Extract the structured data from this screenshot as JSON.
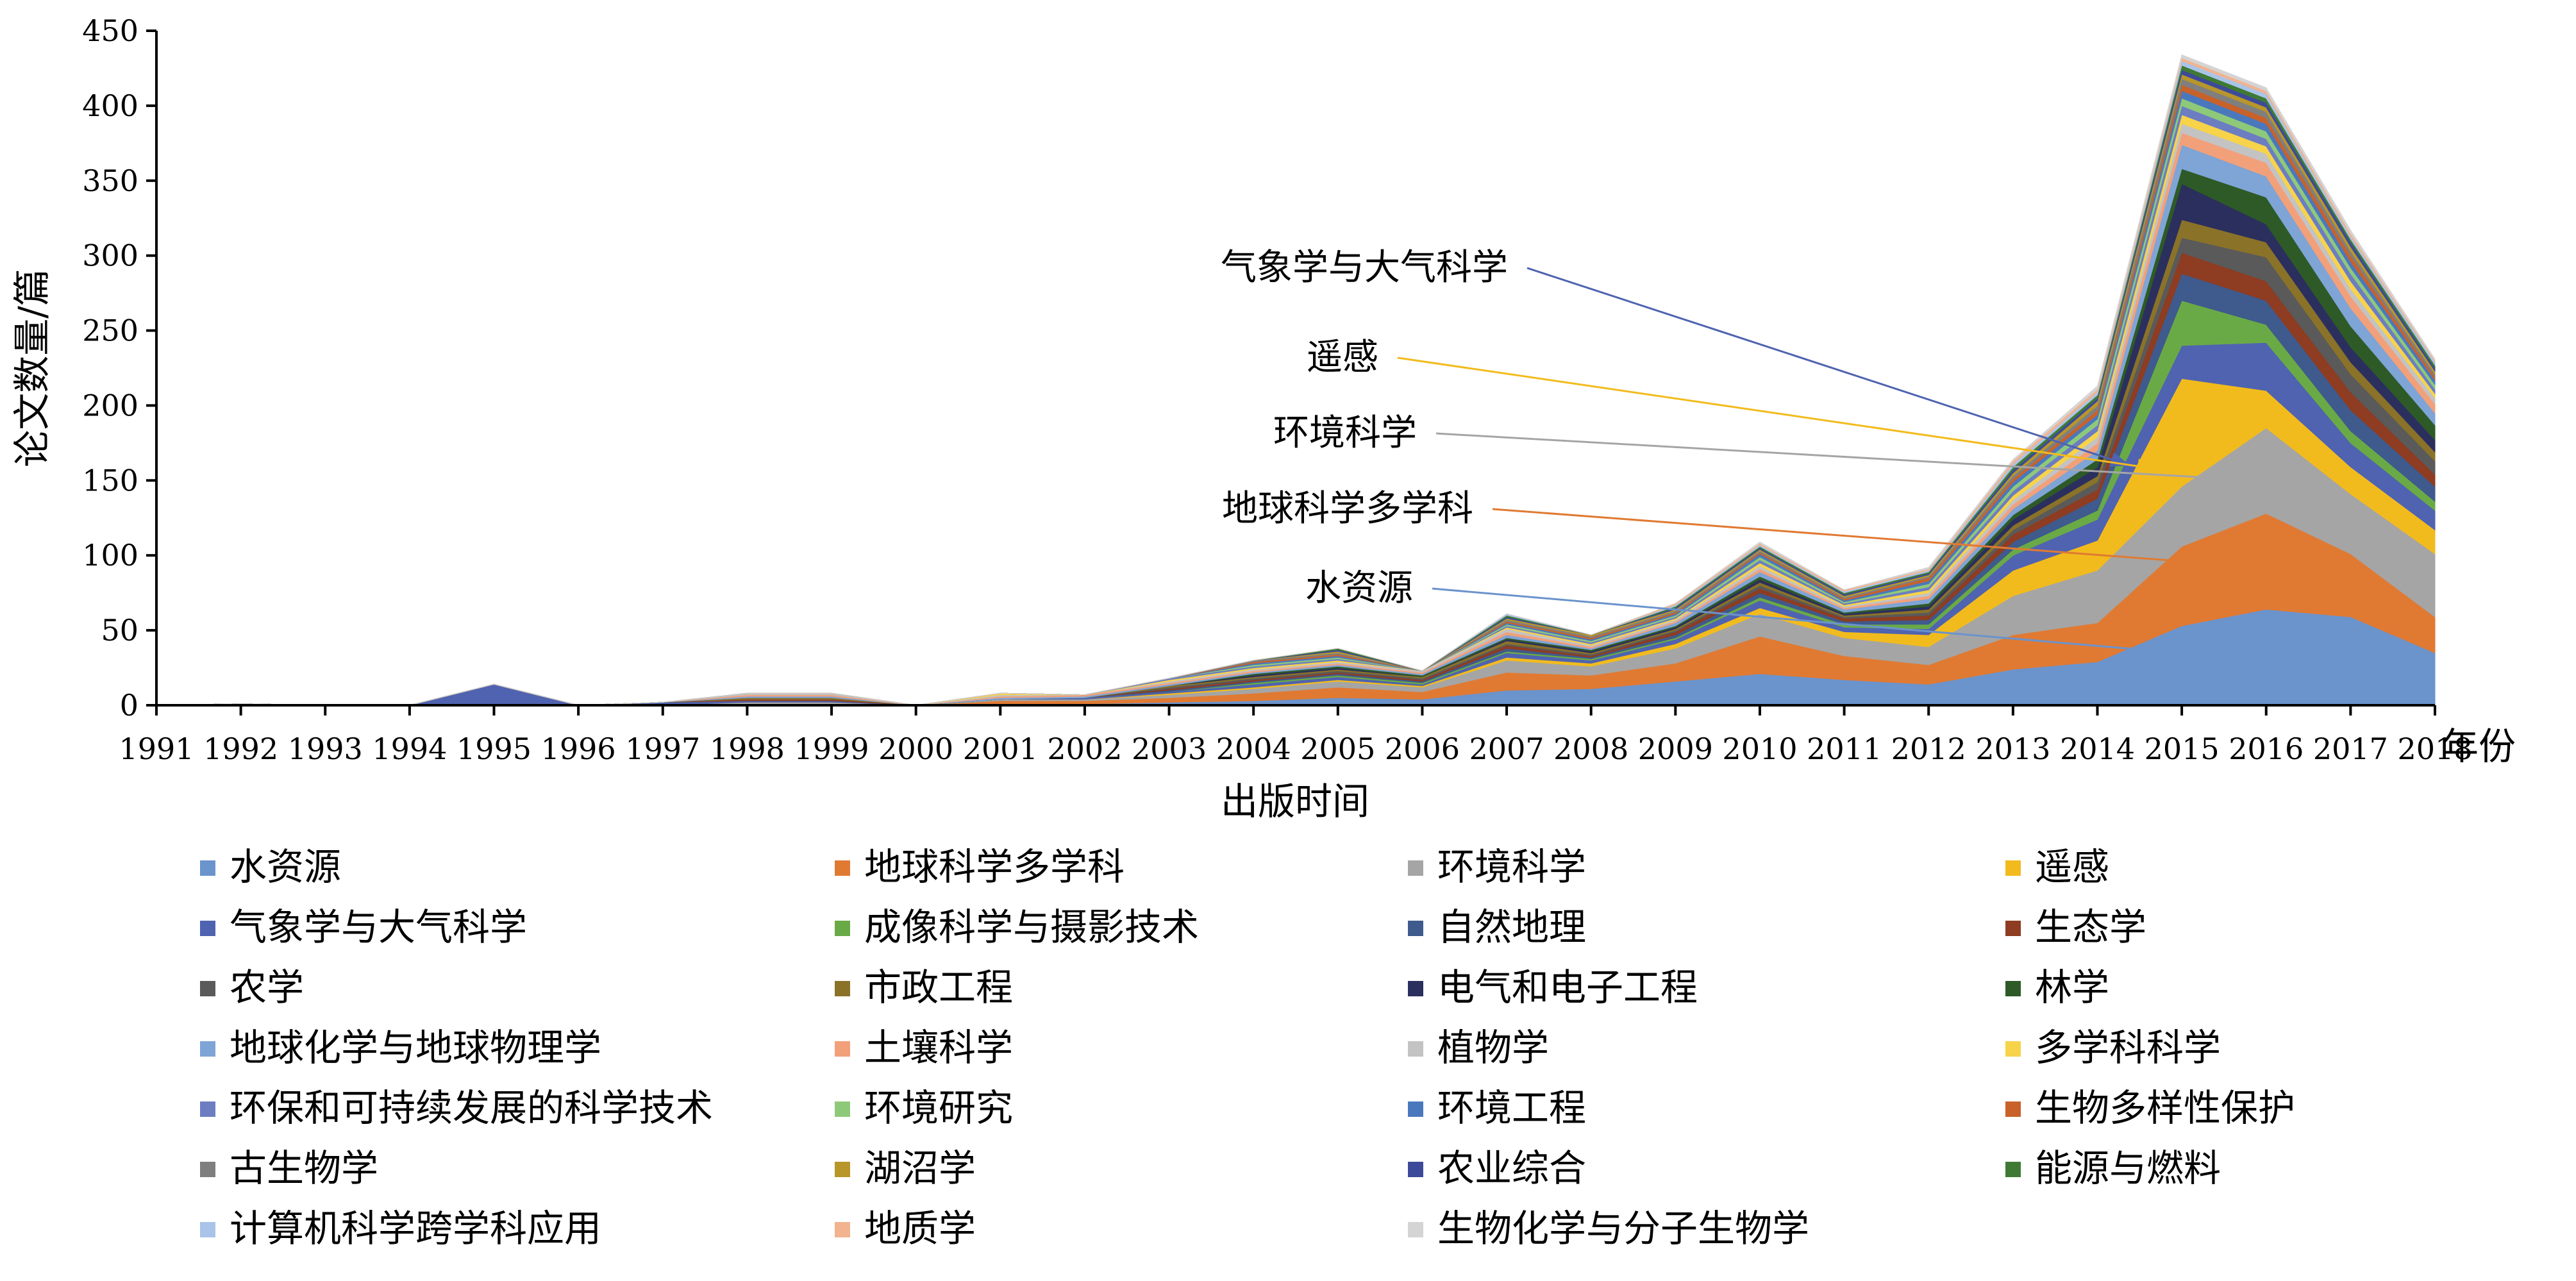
{
  "chart_data": {
    "type": "area",
    "stacked": true,
    "xlabel": "出版时间",
    "x_unit": "年份",
    "ylabel": "论文数量/篇",
    "ylim": [
      0,
      450
    ],
    "yticks": [
      0,
      50,
      100,
      150,
      200,
      250,
      300,
      350,
      400,
      450
    ],
    "x": [
      "1991",
      "1992",
      "1993",
      "1994",
      "1995",
      "1996",
      "1997",
      "1998",
      "1999",
      "2000",
      "2001",
      "2002",
      "2003",
      "2004",
      "2005",
      "2006",
      "2007",
      "2008",
      "2009",
      "2010",
      "2011",
      "2012",
      "2013",
      "2014",
      "2015",
      "2016",
      "2017",
      "2018"
    ],
    "grid": false,
    "legend_position": "bottom",
    "series": [
      {
        "name": "水资源",
        "color": "#6b93cc",
        "values": [
          0,
          0,
          0,
          0,
          0,
          0,
          0,
          0,
          0,
          0,
          1,
          1,
          2,
          3,
          5,
          4,
          10,
          11,
          16,
          21,
          17,
          14,
          24,
          29,
          53,
          64,
          59,
          35
        ]
      },
      {
        "name": "地球科学多学科",
        "color": "#e07a33",
        "values": [
          0,
          0,
          0,
          0,
          0,
          0,
          0,
          1,
          1,
          0,
          2,
          2,
          3,
          5,
          7,
          5,
          12,
          9,
          12,
          25,
          16,
          13,
          23,
          26,
          53,
          64,
          42,
          24
        ]
      },
      {
        "name": "环境科学",
        "color": "#a5a5a5",
        "values": [
          0,
          0,
          0,
          0,
          0,
          0,
          0,
          1,
          1,
          0,
          1,
          1,
          2,
          3,
          4,
          3,
          8,
          6,
          10,
          15,
          12,
          12,
          26,
          35,
          40,
          57,
          40,
          42
        ]
      },
      {
        "name": "遥感",
        "color": "#f2bb1d",
        "values": [
          0,
          0,
          0,
          0,
          0,
          0,
          0,
          0,
          0,
          0,
          0,
          0,
          1,
          1,
          1,
          1,
          2,
          2,
          3,
          4,
          4,
          8,
          17,
          20,
          72,
          25,
          18,
          16
        ]
      },
      {
        "name": "气象学与大气科学",
        "color": "#4f63b0",
        "values": [
          0,
          1,
          0,
          0,
          14,
          0,
          2,
          1,
          1,
          0,
          0,
          1,
          1,
          2,
          2,
          1,
          3,
          2,
          3,
          5,
          3,
          4,
          10,
          14,
          22,
          32,
          16,
          13
        ]
      },
      {
        "name": "成像科学与摄影技术",
        "color": "#6aaa46",
        "values": [
          0,
          0,
          0,
          0,
          0,
          0,
          0,
          0,
          0,
          0,
          0,
          0,
          0,
          1,
          1,
          1,
          1,
          1,
          1,
          2,
          2,
          3,
          4,
          6,
          30,
          12,
          8,
          6
        ]
      },
      {
        "name": "自然地理",
        "color": "#3f5a8c",
        "values": [
          0,
          0,
          0,
          0,
          0,
          0,
          0,
          0,
          0,
          0,
          0,
          0,
          1,
          1,
          1,
          1,
          2,
          1,
          2,
          3,
          2,
          3,
          5,
          8,
          18,
          16,
          14,
          10
        ]
      },
      {
        "name": "生态学",
        "color": "#8e3c22",
        "values": [
          0,
          0,
          0,
          0,
          0,
          0,
          0,
          1,
          1,
          0,
          0,
          0,
          1,
          1,
          1,
          1,
          2,
          1,
          2,
          3,
          2,
          3,
          5,
          6,
          14,
          13,
          12,
          8
        ]
      },
      {
        "name": "农学",
        "color": "#5a5a5a",
        "values": [
          0,
          0,
          0,
          0,
          0,
          0,
          0,
          0,
          0,
          0,
          0,
          0,
          1,
          1,
          1,
          1,
          1,
          1,
          1,
          2,
          1,
          2,
          3,
          5,
          10,
          16,
          12,
          9
        ]
      },
      {
        "name": "市政工程",
        "color": "#8a7228",
        "values": [
          0,
          0,
          0,
          0,
          0,
          0,
          0,
          1,
          1,
          0,
          0,
          0,
          1,
          1,
          1,
          1,
          2,
          1,
          1,
          2,
          1,
          2,
          3,
          4,
          12,
          10,
          8,
          6
        ]
      },
      {
        "name": "电气和电子工程",
        "color": "#2b2f5e",
        "values": [
          0,
          0,
          0,
          0,
          0,
          0,
          0,
          0,
          0,
          0,
          0,
          0,
          0,
          1,
          1,
          0,
          1,
          1,
          1,
          2,
          1,
          2,
          4,
          6,
          24,
          12,
          10,
          8
        ]
      },
      {
        "name": "林学",
        "color": "#2e5a27",
        "values": [
          0,
          0,
          0,
          0,
          0,
          0,
          0,
          0,
          0,
          0,
          0,
          0,
          0,
          1,
          1,
          1,
          1,
          1,
          1,
          2,
          1,
          2,
          3,
          5,
          10,
          18,
          14,
          10
        ]
      },
      {
        "name": "地球化学与地球物理学",
        "color": "#7fa4d6",
        "values": [
          0,
          0,
          0,
          0,
          0,
          0,
          0,
          1,
          1,
          0,
          1,
          1,
          1,
          1,
          1,
          1,
          2,
          1,
          2,
          3,
          2,
          3,
          4,
          6,
          16,
          14,
          12,
          8
        ]
      },
      {
        "name": "土壤科学",
        "color": "#f2a07a",
        "values": [
          0,
          0,
          0,
          0,
          0,
          0,
          0,
          1,
          1,
          0,
          1,
          1,
          1,
          1,
          1,
          1,
          2,
          1,
          1,
          2,
          1,
          2,
          3,
          5,
          8,
          9,
          8,
          6
        ]
      },
      {
        "name": "植物学",
        "color": "#c3c3c3",
        "values": [
          0,
          0,
          0,
          0,
          0,
          0,
          0,
          1,
          1,
          0,
          1,
          0,
          1,
          1,
          1,
          1,
          2,
          1,
          1,
          2,
          1,
          2,
          3,
          4,
          6,
          6,
          5,
          4
        ]
      },
      {
        "name": "多学科科学",
        "color": "#f7d34a",
        "values": [
          0,
          0,
          0,
          0,
          0,
          0,
          0,
          0,
          0,
          0,
          1,
          0,
          1,
          1,
          1,
          0,
          1,
          1,
          1,
          2,
          1,
          2,
          3,
          4,
          6,
          5,
          5,
          3
        ]
      },
      {
        "name": "环保和可持续发展的科学技术",
        "color": "#6c7dc2",
        "values": [
          0,
          0,
          0,
          0,
          0,
          0,
          0,
          0,
          0,
          0,
          0,
          0,
          1,
          1,
          1,
          0,
          1,
          1,
          1,
          2,
          1,
          2,
          3,
          4,
          6,
          5,
          5,
          3
        ]
      },
      {
        "name": "环境研究",
        "color": "#8ec97a",
        "values": [
          0,
          0,
          0,
          0,
          0,
          0,
          0,
          0,
          0,
          0,
          0,
          0,
          0,
          1,
          1,
          0,
          1,
          1,
          1,
          2,
          1,
          2,
          3,
          4,
          5,
          5,
          4,
          3
        ]
      },
      {
        "name": "环境工程",
        "color": "#4a78bd",
        "values": [
          0,
          0,
          0,
          0,
          0,
          0,
          0,
          0,
          0,
          0,
          0,
          0,
          0,
          1,
          1,
          0,
          1,
          1,
          1,
          2,
          1,
          2,
          3,
          3,
          5,
          5,
          4,
          3
        ]
      },
      {
        "name": "生物多样性保护",
        "color": "#c8622a",
        "values": [
          0,
          0,
          0,
          0,
          0,
          0,
          0,
          0,
          0,
          0,
          0,
          0,
          0,
          1,
          1,
          0,
          1,
          1,
          1,
          1,
          1,
          2,
          2,
          3,
          4,
          4,
          4,
          2
        ]
      },
      {
        "name": "古生物学",
        "color": "#7f7f7f",
        "values": [
          0,
          0,
          0,
          0,
          0,
          0,
          0,
          0,
          0,
          0,
          0,
          0,
          0,
          1,
          1,
          0,
          1,
          1,
          1,
          1,
          1,
          1,
          2,
          3,
          4,
          4,
          3,
          2
        ]
      },
      {
        "name": "湖沼学",
        "color": "#b8962a",
        "values": [
          0,
          0,
          0,
          0,
          0,
          0,
          0,
          0,
          0,
          0,
          0,
          0,
          0,
          0,
          1,
          0,
          1,
          1,
          1,
          1,
          1,
          1,
          2,
          3,
          3,
          3,
          3,
          2
        ]
      },
      {
        "name": "农业综合",
        "color": "#3d4a9a",
        "values": [
          0,
          0,
          0,
          0,
          0,
          0,
          0,
          0,
          0,
          0,
          0,
          0,
          0,
          0,
          1,
          0,
          1,
          0,
          1,
          1,
          1,
          1,
          2,
          2,
          3,
          3,
          3,
          2
        ]
      },
      {
        "name": "能源与燃料",
        "color": "#3f7a35",
        "values": [
          0,
          0,
          0,
          0,
          0,
          0,
          0,
          0,
          0,
          0,
          0,
          0,
          0,
          0,
          1,
          0,
          1,
          0,
          1,
          1,
          1,
          1,
          2,
          2,
          3,
          3,
          2,
          2
        ]
      },
      {
        "name": "计算机科学跨学科应用",
        "color": "#a9c4e8",
        "values": [
          0,
          0,
          0,
          0,
          0,
          0,
          0,
          0,
          0,
          0,
          0,
          0,
          0,
          0,
          0,
          0,
          1,
          0,
          1,
          1,
          1,
          1,
          2,
          2,
          3,
          3,
          2,
          2
        ]
      },
      {
        "name": "地质学",
        "color": "#f2b38f",
        "values": [
          0,
          0,
          0,
          0,
          0,
          0,
          0,
          0,
          0,
          0,
          0,
          0,
          0,
          0,
          0,
          0,
          0,
          0,
          1,
          1,
          1,
          1,
          2,
          2,
          2,
          2,
          2,
          1
        ]
      },
      {
        "name": "生物化学与分子生物学",
        "color": "#d4d4d4",
        "values": [
          0,
          0,
          0,
          0,
          0,
          0,
          0,
          0,
          0,
          0,
          0,
          0,
          0,
          0,
          0,
          0,
          0,
          0,
          0,
          1,
          0,
          1,
          1,
          2,
          2,
          2,
          2,
          1
        ]
      }
    ],
    "annotations": [
      {
        "text": "气象学与大气科学",
        "series": 4,
        "x": "2015",
        "color": "#4f63b0"
      },
      {
        "text": "遥感",
        "series": 3,
        "x": "2015",
        "color": "#f2bb1d"
      },
      {
        "text": "环境科学",
        "series": 2,
        "x": "2015",
        "color": "#a5a5a5"
      },
      {
        "text": "地球科学多学科",
        "series": 1,
        "x": "2015",
        "color": "#e07a33"
      },
      {
        "text": "水资源",
        "series": 0,
        "x": "2015",
        "color": "#6b93cc"
      }
    ]
  }
}
